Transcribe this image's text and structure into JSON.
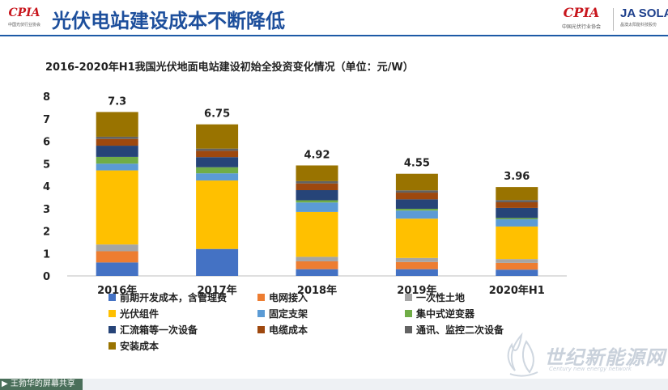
{
  "header": {
    "title": "光伏电站建设成本不断降低",
    "logo_left_word": "CPIA",
    "logo_left_sub": "中国光伏行业协会",
    "logo_right_word": "CPIA",
    "logo_right_sub": "中国光伏行业协会",
    "logo_ja_word": "JA SOLA",
    "logo_ja_sub": "晶澳太阳能科技股份"
  },
  "watermark": {
    "cn": "世纪新能源网",
    "en": "Century new energy network"
  },
  "share_bar": {
    "label": "王勃华的屏幕共享"
  },
  "chart_data": {
    "type": "bar",
    "stacked": true,
    "title": "2016-2020年H1我国光伏地面电站建设初始全投资变化情况（单位：元/W）",
    "categories": [
      "2016年",
      "2017年",
      "2018年",
      "2019年",
      "2020年H1"
    ],
    "ylim": [
      0,
      8
    ],
    "yticks": [
      0,
      1,
      2,
      3,
      4,
      5,
      6,
      7,
      8
    ],
    "grid": false,
    "legend_position": "bottom",
    "totals": [
      "7.3",
      "6.75",
      "4.92",
      "4.55",
      "3.96"
    ],
    "series": [
      {
        "name": "前期开发成本，含管理费",
        "color": "#4472c4",
        "values": [
          0.6,
          1.2,
          0.3,
          0.3,
          0.28
        ]
      },
      {
        "name": "电网接入",
        "color": "#ed7d31",
        "values": [
          0.5,
          0.0,
          0.35,
          0.32,
          0.3
        ]
      },
      {
        "name": "一次性土地",
        "color": "#a5a5a5",
        "values": [
          0.3,
          0.0,
          0.2,
          0.18,
          0.17
        ]
      },
      {
        "name": "光伏组件",
        "color": "#ffc000",
        "values": [
          3.3,
          3.05,
          2.0,
          1.75,
          1.45
        ]
      },
      {
        "name": "固定支架",
        "color": "#5b9bd5",
        "values": [
          0.3,
          0.32,
          0.42,
          0.36,
          0.32
        ]
      },
      {
        "name": "集中式逆变器",
        "color": "#70ad47",
        "values": [
          0.3,
          0.27,
          0.1,
          0.08,
          0.06
        ]
      },
      {
        "name": "汇流箱等一次设备",
        "color": "#264478",
        "values": [
          0.5,
          0.45,
          0.45,
          0.42,
          0.45
        ]
      },
      {
        "name": "电缆成本",
        "color": "#9e480e",
        "values": [
          0.3,
          0.28,
          0.3,
          0.3,
          0.25
        ]
      },
      {
        "name": "通讯、监控二次设备",
        "color": "#636363",
        "values": [
          0.1,
          0.1,
          0.1,
          0.1,
          0.1
        ]
      },
      {
        "name": "安装成本",
        "color": "#997300",
        "values": [
          1.1,
          1.08,
          0.7,
          0.74,
          0.58
        ]
      }
    ]
  }
}
